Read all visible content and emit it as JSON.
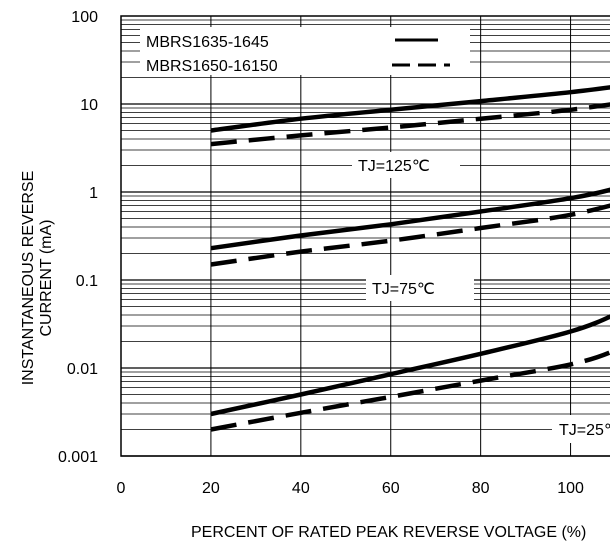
{
  "chart_data": {
    "type": "line",
    "xlabel": "PERCENT OF RATED PEAK REVERSE VOLTAGE (%)",
    "ylabel_line1": "INSTANTANEOUS REVERSE",
    "ylabel_line2": "CURRENT (mA)",
    "x_ticks": [
      "0",
      "20",
      "40",
      "60",
      "80",
      "100"
    ],
    "y_ticks": [
      "0.001",
      "0.01",
      "0.1",
      "1",
      "10",
      "100"
    ],
    "xlim": [
      0,
      115
    ],
    "ylim": [
      0.001,
      100
    ],
    "y_scale": "log",
    "grid": true,
    "legend_placement": "top-left",
    "legend": [
      {
        "name": "MBRS1635-1645",
        "style": "solid"
      },
      {
        "name": "MBRS1650-16150",
        "style": "dashed"
      }
    ],
    "annotations": [
      {
        "text": "TJ=125℃"
      },
      {
        "text": "TJ=75℃"
      },
      {
        "text": "TJ=25℃"
      }
    ],
    "series": [
      {
        "group": "TJ=125℃",
        "style": "solid",
        "x": [
          20,
          40,
          60,
          80,
          100,
          115
        ],
        "y": [
          5.0,
          6.8,
          8.6,
          10.8,
          13.6,
          17.0
        ]
      },
      {
        "group": "TJ=125℃",
        "style": "dashed",
        "x": [
          20,
          40,
          60,
          80,
          100,
          115
        ],
        "y": [
          3.5,
          4.4,
          5.4,
          6.8,
          8.6,
          11.0
        ]
      },
      {
        "group": "TJ=75℃",
        "style": "solid",
        "x": [
          20,
          40,
          60,
          80,
          100,
          110,
          115
        ],
        "y": [
          0.23,
          0.32,
          0.43,
          0.6,
          0.85,
          1.1,
          1.4
        ]
      },
      {
        "group": "TJ=75℃",
        "style": "dashed",
        "x": [
          20,
          40,
          60,
          80,
          100,
          115
        ],
        "y": [
          0.15,
          0.21,
          0.28,
          0.39,
          0.55,
          0.85
        ]
      },
      {
        "group": "TJ=25℃",
        "style": "solid",
        "x": [
          20,
          40,
          60,
          80,
          100,
          110,
          115
        ],
        "y": [
          0.003,
          0.005,
          0.0085,
          0.0145,
          0.026,
          0.041,
          0.06
        ]
      },
      {
        "group": "TJ=25℃",
        "style": "dashed",
        "x": [
          20,
          40,
          60,
          80,
          100,
          110,
          115
        ],
        "y": [
          0.002,
          0.0031,
          0.0047,
          0.0072,
          0.011,
          0.016,
          0.024
        ]
      }
    ]
  }
}
